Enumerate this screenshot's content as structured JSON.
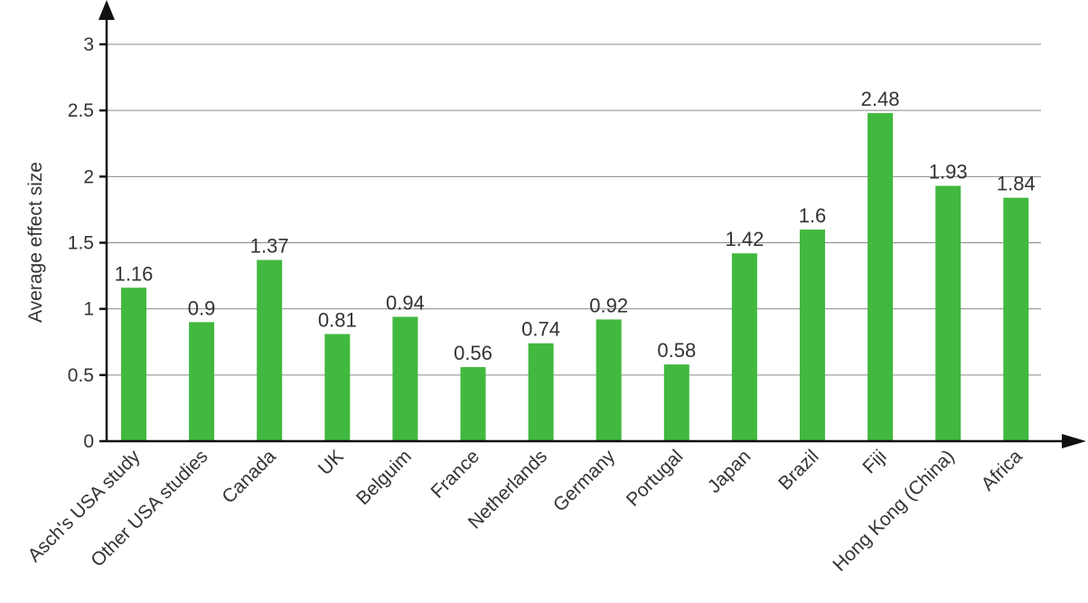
{
  "chart_data": {
    "type": "bar",
    "title": "",
    "xlabel": "",
    "ylabel": "Average effect size",
    "ylim": [
      0,
      3
    ],
    "yticks": [
      0,
      0.5,
      1,
      1.5,
      2,
      2.5,
      3
    ],
    "ytick_labels": [
      "0",
      "0.5",
      "1",
      "1.5",
      "2",
      "2.5",
      "3"
    ],
    "grid": true,
    "legend": "none",
    "categories": [
      "Asch's USA study",
      "Other USA studies",
      "Canada",
      "UK",
      "Belguim",
      "France",
      "Netherlands",
      "Germany",
      "Portugal",
      "Japan",
      "Brazil",
      "Fiji",
      "Hong Kong (China)",
      "Africa"
    ],
    "values": [
      1.16,
      0.9,
      1.37,
      0.81,
      0.94,
      0.56,
      0.74,
      0.92,
      0.58,
      1.42,
      1.6,
      2.48,
      1.93,
      1.84
    ],
    "data_labels": [
      "1.16",
      "0.9",
      "1.37",
      "0.81",
      "0.94",
      "0.56",
      "0.74",
      "0.92",
      "0.58",
      "1.42",
      "1.6",
      "2.48",
      "1.93",
      "1.84"
    ],
    "colors": {
      "bar": "#41b93f",
      "axis": "#111111",
      "grid": "#8a8a8a",
      "text": "#333333"
    }
  }
}
